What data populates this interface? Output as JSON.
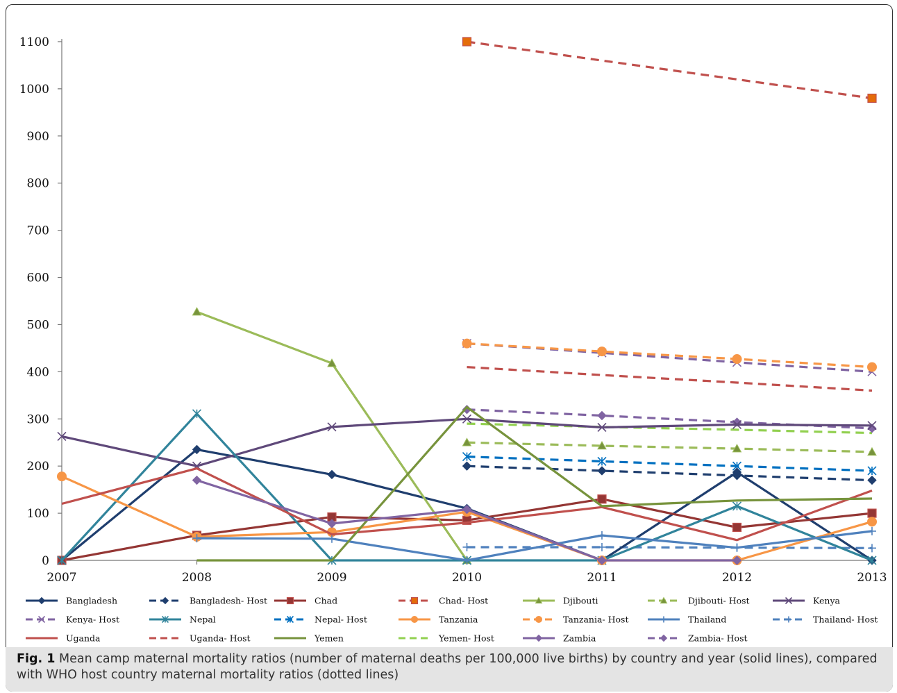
{
  "caption": {
    "label": "Fig. 1",
    "text": "Mean camp maternal mortality ratios (number of maternal deaths per 100,000 live births) by country and year (solid lines), compared with WHO host country maternal mortality ratios (dotted lines)"
  },
  "chart_data": {
    "type": "line",
    "title": "",
    "xlabel": "",
    "ylabel": "",
    "x": [
      2007,
      2008,
      2009,
      2010,
      2011,
      2012,
      2013
    ],
    "x_tick_labels": [
      "2007",
      "2008",
      "2009",
      "2010",
      "2011",
      "2012",
      "2013"
    ],
    "ylim": [
      0,
      1100
    ],
    "y_ticks": [
      0,
      100,
      200,
      300,
      400,
      500,
      600,
      700,
      800,
      900,
      1000,
      1100
    ],
    "y_tick_labels": [
      "0",
      "100",
      "200",
      "300",
      "400",
      "500",
      "600",
      "700",
      "800",
      "900",
      "1000",
      "1100"
    ],
    "grid": false,
    "legend_position": "bottom",
    "series": [
      {
        "name": "Bangladesh",
        "color": "#1f3e6e",
        "dash": "solid",
        "marker": "diamond",
        "values": [
          0,
          235,
          182,
          110,
          0,
          187,
          0
        ]
      },
      {
        "name": "Bangladesh- Host",
        "color": "#1f3e6e",
        "dash": "dashed",
        "marker": "diamond",
        "values": [
          null,
          null,
          null,
          200,
          190,
          180,
          170
        ]
      },
      {
        "name": "Chad",
        "color": "#943634",
        "dash": "solid",
        "marker": "square",
        "values": [
          0,
          53,
          92,
          85,
          130,
          70,
          100
        ]
      },
      {
        "name": "Chad- Host",
        "color": "#c0504d",
        "dash": "dashed",
        "marker": "square-orange",
        "values": [
          null,
          null,
          null,
          1100,
          null,
          null,
          980
        ]
      },
      {
        "name": "Djibouti",
        "color": "#9bbb59",
        "dash": "solid",
        "marker": "triangle",
        "values": [
          null,
          527,
          418,
          0,
          null,
          null,
          null
        ]
      },
      {
        "name": "Djibouti- Host",
        "color": "#9bbb59",
        "dash": "dashed",
        "marker": "triangle",
        "values": [
          null,
          null,
          null,
          250,
          243,
          237,
          230
        ]
      },
      {
        "name": "Kenya",
        "color": "#5f497a",
        "dash": "solid",
        "marker": "x",
        "values": [
          263,
          200,
          283,
          300,
          282,
          288,
          286
        ]
      },
      {
        "name": "Kenya- Host",
        "color": "#8064a2",
        "dash": "dashed",
        "marker": "x",
        "values": [
          null,
          null,
          null,
          460,
          440,
          420,
          400
        ]
      },
      {
        "name": "Nepal",
        "color": "#31849b",
        "dash": "solid",
        "marker": "star",
        "values": [
          0,
          311,
          0,
          0,
          0,
          115,
          0
        ]
      },
      {
        "name": "Nepal- Host",
        "color": "#0070c0",
        "dash": "dashed",
        "marker": "star",
        "values": [
          null,
          null,
          null,
          220,
          210,
          200,
          190
        ]
      },
      {
        "name": "Tanzania",
        "color": "#f79646",
        "dash": "solid",
        "marker": "circle",
        "values": [
          178,
          50,
          60,
          103,
          0,
          0,
          82
        ]
      },
      {
        "name": "Tanzania- Host",
        "color": "#f79646",
        "dash": "dashed",
        "marker": "circle",
        "values": [
          null,
          null,
          null,
          460,
          443,
          427,
          410
        ]
      },
      {
        "name": "Thailand",
        "color": "#4f81bd",
        "dash": "solid",
        "marker": "plus",
        "values": [
          null,
          47,
          46,
          0,
          53,
          27,
          62
        ]
      },
      {
        "name": "Thailand- Host",
        "color": "#4f81bd",
        "dash": "dashed",
        "marker": "plus",
        "values": [
          null,
          null,
          null,
          28,
          28,
          27,
          26
        ]
      },
      {
        "name": "Uganda",
        "color": "#c0504d",
        "dash": "solid",
        "marker": "none",
        "values": [
          120,
          195,
          55,
          80,
          113,
          43,
          148
        ]
      },
      {
        "name": "Uganda- Host",
        "color": "#c0504d",
        "dash": "dashed",
        "marker": "none",
        "values": [
          null,
          null,
          null,
          410,
          393,
          377,
          360
        ]
      },
      {
        "name": "Yemen",
        "color": "#77933c",
        "dash": "solid",
        "marker": "none",
        "values": [
          null,
          0,
          0,
          325,
          115,
          127,
          131
        ]
      },
      {
        "name": "Yemen- Host",
        "color": "#92d050",
        "dash": "dashed",
        "marker": "none",
        "values": [
          null,
          null,
          null,
          290,
          283,
          277,
          270
        ]
      },
      {
        "name": "Zambia",
        "color": "#8064a2",
        "dash": "solid",
        "marker": "diamond",
        "values": [
          null,
          170,
          78,
          108,
          0,
          0,
          null
        ]
      },
      {
        "name": "Zambia- Host",
        "color": "#8064a2",
        "dash": "dashed",
        "marker": "diamond",
        "values": [
          null,
          null,
          null,
          320,
          307,
          293,
          280
        ]
      }
    ]
  }
}
